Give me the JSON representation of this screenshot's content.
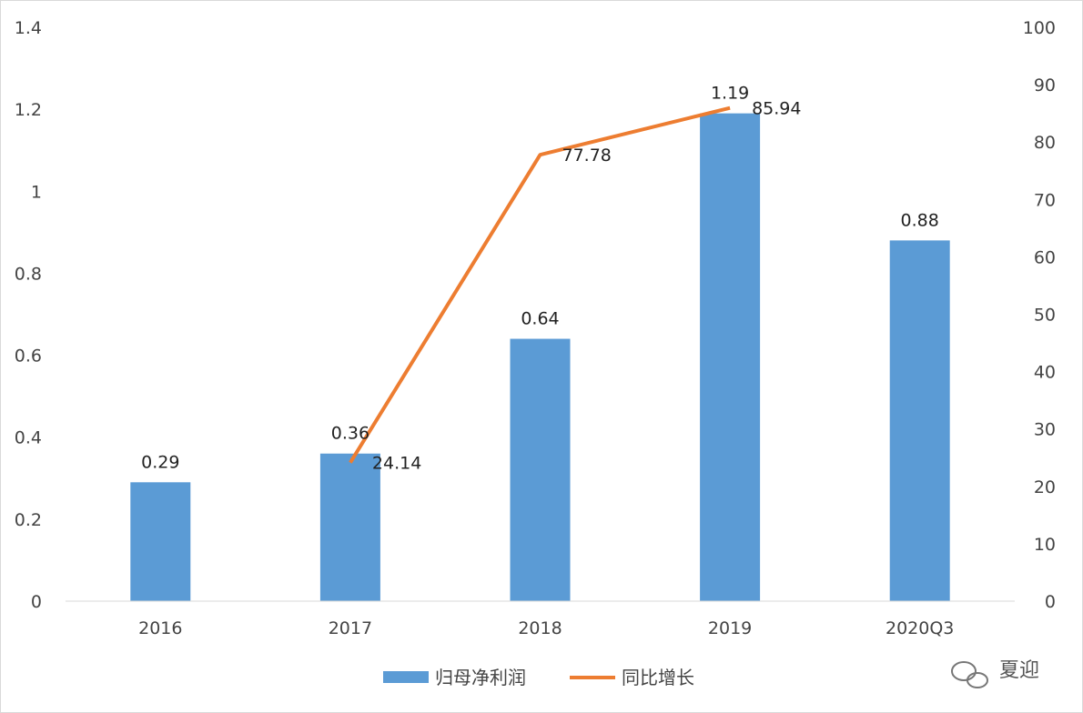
{
  "chart_data": {
    "type": "bar",
    "categories": [
      "2016",
      "2017",
      "2018",
      "2019",
      "2020Q3"
    ],
    "series": [
      {
        "name": "归母净利润",
        "type": "bar",
        "axis": "left",
        "color": "#5B9BD5",
        "values": [
          0.29,
          0.36,
          0.64,
          1.19,
          0.88
        ],
        "labels": [
          "0.29",
          "0.36",
          "0.64",
          "1.19",
          "0.88"
        ]
      },
      {
        "name": "同比增长",
        "type": "line",
        "axis": "right",
        "color": "#ED7D31",
        "values": [
          null,
          24.14,
          77.78,
          85.94,
          null
        ],
        "labels": [
          "",
          "24.14",
          "77.78",
          "85.94",
          ""
        ]
      }
    ],
    "y_left": {
      "lim": [
        0,
        1.4
      ],
      "ticks": [
        0,
        0.2,
        0.4,
        0.6,
        0.8,
        1,
        1.2,
        1.4
      ],
      "tick_labels": [
        "0",
        "0.2",
        "0.4",
        "0.6",
        "0.8",
        "1",
        "1.2",
        "1.4"
      ]
    },
    "y_right": {
      "lim": [
        0,
        100
      ],
      "ticks": [
        0,
        10,
        20,
        30,
        40,
        50,
        60,
        70,
        80,
        90,
        100
      ],
      "tick_labels": [
        "0",
        "10",
        "20",
        "30",
        "40",
        "50",
        "60",
        "70",
        "80",
        "90",
        "100"
      ]
    },
    "grid": false,
    "legend": "bottom"
  },
  "watermark": {
    "text": "夏迎",
    "icon": "wechat-icon"
  }
}
